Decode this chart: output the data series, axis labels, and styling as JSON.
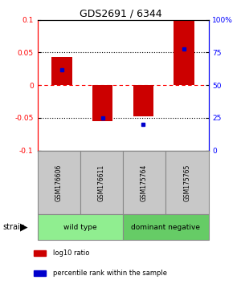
{
  "title": "GDS2691 / 6344",
  "samples": [
    "GSM176606",
    "GSM176611",
    "GSM175764",
    "GSM175765"
  ],
  "log10_ratio": [
    0.043,
    -0.055,
    -0.048,
    0.098
  ],
  "percentile_rank": [
    62,
    25,
    20,
    78
  ],
  "groups": [
    {
      "label": "wild type",
      "samples": [
        0,
        1
      ],
      "color": "#90EE90"
    },
    {
      "label": "dominant negative",
      "samples": [
        2,
        3
      ],
      "color": "#66CC66"
    }
  ],
  "bar_color": "#CC0000",
  "dot_color": "#0000CC",
  "ylim_left": [
    -0.1,
    0.1
  ],
  "ylim_right": [
    0,
    100
  ],
  "yticks_left": [
    -0.1,
    -0.05,
    0,
    0.05,
    0.1
  ],
  "yticks_right": [
    0,
    25,
    50,
    75,
    100
  ],
  "ytick_labels_right": [
    "0",
    "25",
    "50",
    "75",
    "100%"
  ],
  "hlines": [
    -0.05,
    0.05
  ],
  "zero_line_color": "#FF0000",
  "bg_color": "#ffffff",
  "bar_width": 0.5,
  "legend_items": [
    {
      "color": "#CC0000",
      "label": "log10 ratio"
    },
    {
      "color": "#0000CC",
      "label": "percentile rank within the sample"
    }
  ],
  "gray_color": "#C8C8C8",
  "gray_edge": "#888888"
}
